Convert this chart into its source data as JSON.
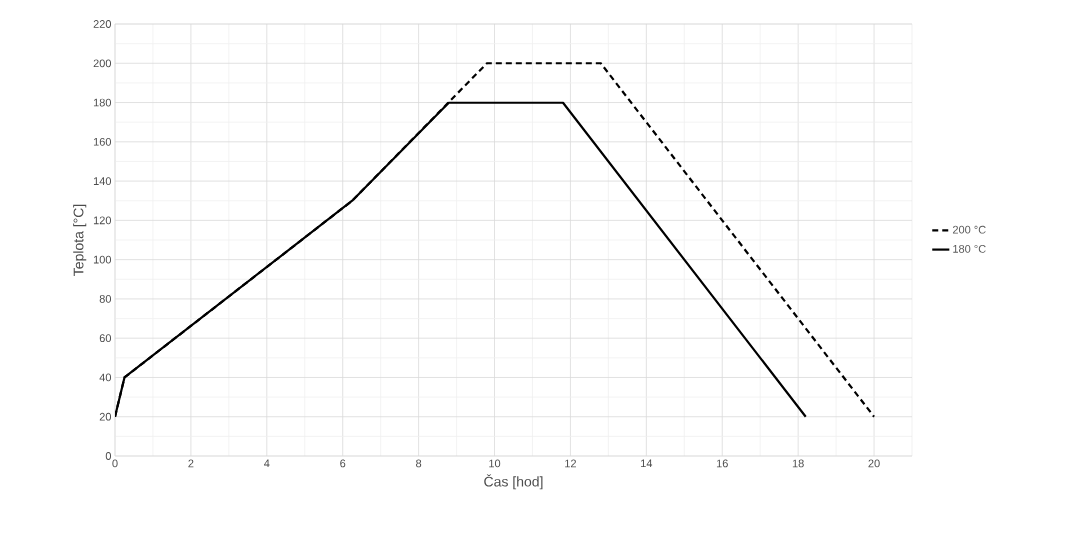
{
  "chart_data": {
    "type": "line",
    "xlabel": "Čas [hod]",
    "ylabel": "Teplota [°C]",
    "xlim": [
      0,
      21
    ],
    "xticks": [
      0,
      2,
      4,
      6,
      8,
      10,
      12,
      14,
      16,
      18,
      20
    ],
    "ylim": [
      0,
      220
    ],
    "yticks": [
      0,
      20,
      40,
      60,
      80,
      100,
      120,
      140,
      160,
      180,
      200,
      220
    ],
    "grid": true,
    "legend": "right",
    "marker": "none",
    "series": [
      {
        "name": "200 °C",
        "color": "#000000",
        "line_style": "dashed",
        "x": [
          0,
          0.25,
          6.25,
          9.8,
          12.8,
          20
        ],
        "values": [
          20,
          40,
          130,
          200,
          200,
          20
        ]
      },
      {
        "name": "180 °C",
        "color": "#000000",
        "line_style": "solid",
        "x": [
          0,
          0.25,
          6.25,
          8.8,
          11.8,
          18.2
        ],
        "values": [
          20,
          40,
          130,
          180,
          180,
          20
        ]
      }
    ]
  }
}
